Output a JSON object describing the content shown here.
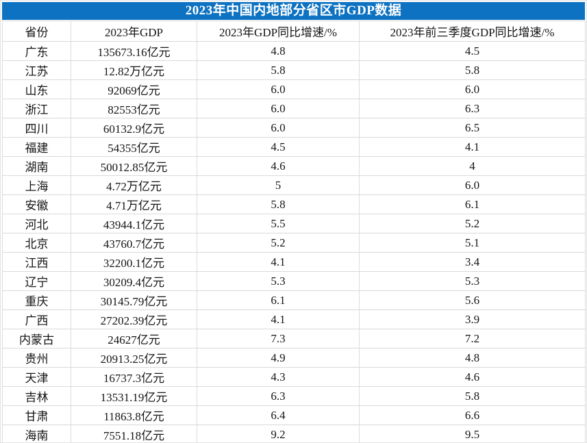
{
  "title_bar": {
    "text": "2023年中国内地部分省区市GDP数据"
  },
  "colors": {
    "title_background": "#0d72c1",
    "title_text": "#ffffff",
    "grid_line": "#dcdcdc",
    "table_bottom_border": "#474747",
    "cell_text": "#141414"
  },
  "table": {
    "headers": {
      "province": "省份",
      "gdp": "2023年GDP",
      "growth_2023": "2023年GDP同比增速/%",
      "growth_q1_q3": "2023年前三季度GDP同比增速/%"
    },
    "rows": [
      {
        "province": "广东",
        "gdp": "135673.16亿元",
        "growth_2023": "4.8",
        "growth_q1_q3": "4.5"
      },
      {
        "province": "江苏",
        "gdp": "12.82万亿元",
        "growth_2023": "5.8",
        "growth_q1_q3": "5.8"
      },
      {
        "province": "山东",
        "gdp": "92069亿元",
        "growth_2023": "6.0",
        "growth_q1_q3": "6.0"
      },
      {
        "province": "浙江",
        "gdp": "82553亿元",
        "growth_2023": "6.0",
        "growth_q1_q3": "6.3"
      },
      {
        "province": "四川",
        "gdp": "60132.9亿元",
        "growth_2023": "6.0",
        "growth_q1_q3": "6.5"
      },
      {
        "province": "福建",
        "gdp": "54355亿元",
        "growth_2023": "4.5",
        "growth_q1_q3": "4.1"
      },
      {
        "province": "湖南",
        "gdp": "50012.85亿元",
        "growth_2023": "4.6",
        "growth_q1_q3": "4"
      },
      {
        "province": "上海",
        "gdp": "4.72万亿元",
        "growth_2023": "5",
        "growth_q1_q3": "6.0"
      },
      {
        "province": "安徽",
        "gdp": "4.71万亿元",
        "growth_2023": "5.8",
        "growth_q1_q3": "6.1"
      },
      {
        "province": "河北",
        "gdp": "43944.1亿元",
        "growth_2023": "5.5",
        "growth_q1_q3": "5.2"
      },
      {
        "province": "北京",
        "gdp": "43760.7亿元",
        "growth_2023": "5.2",
        "growth_q1_q3": "5.1"
      },
      {
        "province": "江西",
        "gdp": "32200.1亿元",
        "growth_2023": "4.1",
        "growth_q1_q3": "3.4"
      },
      {
        "province": "辽宁",
        "gdp": "30209.4亿元",
        "growth_2023": "5.3",
        "growth_q1_q3": "5.3"
      },
      {
        "province": "重庆",
        "gdp": "30145.79亿元",
        "growth_2023": "6.1",
        "growth_q1_q3": "5.6"
      },
      {
        "province": "广西",
        "gdp": "27202.39亿元",
        "growth_2023": "4.1",
        "growth_q1_q3": "3.9"
      },
      {
        "province": "内蒙古",
        "gdp": "24627亿元",
        "growth_2023": "7.3",
        "growth_q1_q3": "7.2"
      },
      {
        "province": "贵州",
        "gdp": "20913.25亿元",
        "growth_2023": "4.9",
        "growth_q1_q3": "4.8"
      },
      {
        "province": "天津",
        "gdp": "16737.3亿元",
        "growth_2023": "4.3",
        "growth_q1_q3": "4.6"
      },
      {
        "province": "吉林",
        "gdp": "13531.19亿元",
        "growth_2023": "6.3",
        "growth_q1_q3": "5.8"
      },
      {
        "province": "甘肃",
        "gdp": "11863.8亿元",
        "growth_2023": "6.4",
        "growth_q1_q3": "6.6"
      },
      {
        "province": "海南",
        "gdp": "7551.18亿元",
        "growth_2023": "9.2",
        "growth_q1_q3": "9.5"
      }
    ]
  },
  "chart_data": {
    "type": "table",
    "title": "2023年中国内地部分省区市GDP数据",
    "columns": [
      "省份",
      "2023年GDP",
      "2023年GDP同比增速/%",
      "2023年前三季度GDP同比增速/%"
    ],
    "rows": [
      [
        "广东",
        "135673.16亿元",
        4.8,
        4.5
      ],
      [
        "江苏",
        "12.82万亿元",
        5.8,
        5.8
      ],
      [
        "山东",
        "92069亿元",
        6.0,
        6.0
      ],
      [
        "浙江",
        "82553亿元",
        6.0,
        6.3
      ],
      [
        "四川",
        "60132.9亿元",
        6.0,
        6.5
      ],
      [
        "福建",
        "54355亿元",
        4.5,
        4.1
      ],
      [
        "湖南",
        "50012.85亿元",
        4.6,
        4
      ],
      [
        "上海",
        "4.72万亿元",
        5,
        6.0
      ],
      [
        "安徽",
        "4.71万亿元",
        5.8,
        6.1
      ],
      [
        "河北",
        "43944.1亿元",
        5.5,
        5.2
      ],
      [
        "北京",
        "43760.7亿元",
        5.2,
        5.1
      ],
      [
        "江西",
        "32200.1亿元",
        4.1,
        3.4
      ],
      [
        "辽宁",
        "30209.4亿元",
        5.3,
        5.3
      ],
      [
        "重庆",
        "30145.79亿元",
        6.1,
        5.6
      ],
      [
        "广西",
        "27202.39亿元",
        4.1,
        3.9
      ],
      [
        "内蒙古",
        "24627亿元",
        7.3,
        7.2
      ],
      [
        "贵州",
        "20913.25亿元",
        4.9,
        4.8
      ],
      [
        "天津",
        "16737.3亿元",
        4.3,
        4.6
      ],
      [
        "吉林",
        "13531.19亿元",
        6.3,
        5.8
      ],
      [
        "甘肃",
        "11863.8亿元",
        6.4,
        6.6
      ],
      [
        "海南",
        "7551.18亿元",
        9.2,
        9.5
      ]
    ]
  }
}
